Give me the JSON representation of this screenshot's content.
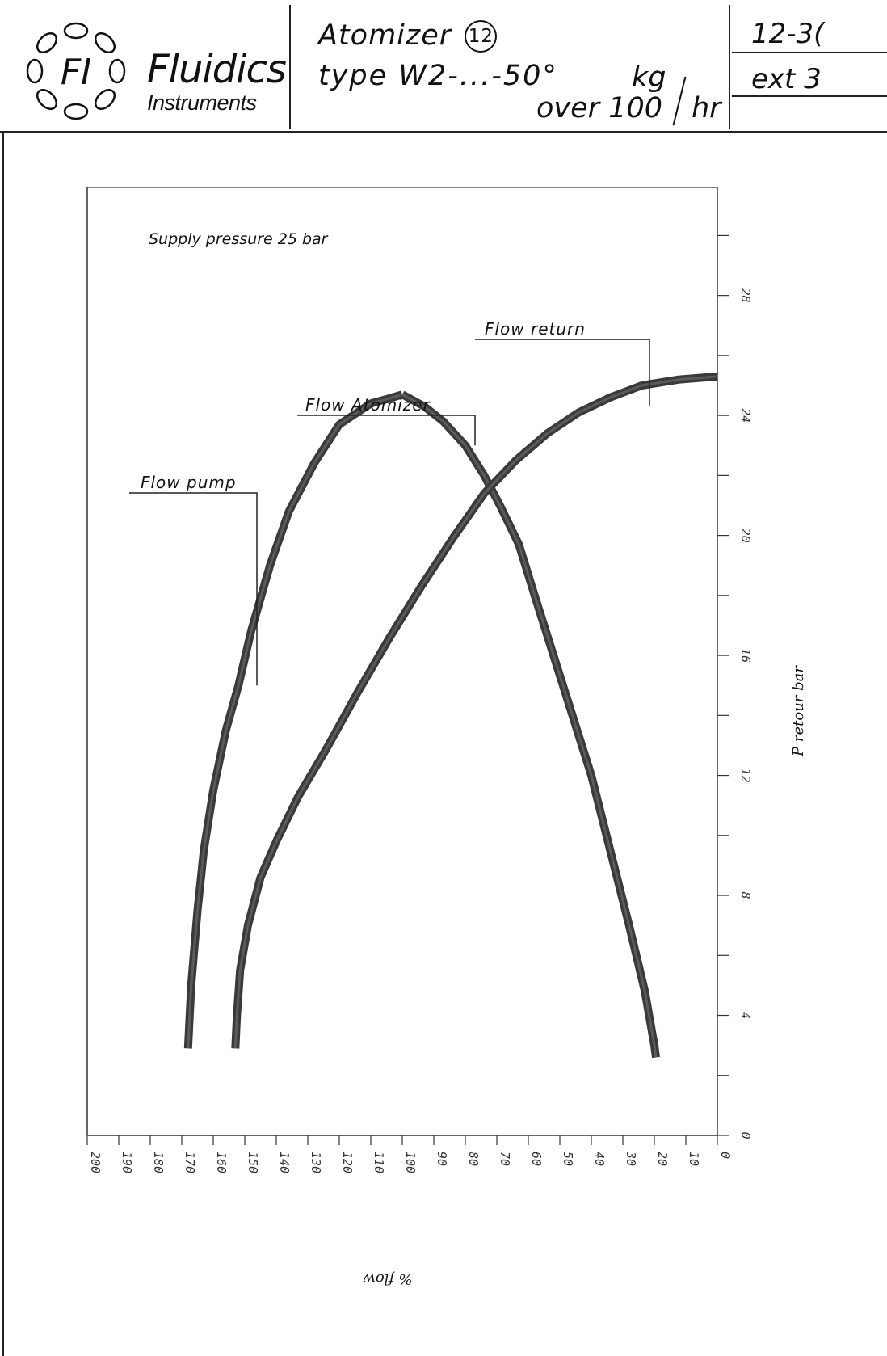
{
  "header": {
    "logo_mark": "FI",
    "company_name": "Fluidics",
    "company_sub": "Instruments",
    "title_line1": "Atomizer",
    "title_number": "12",
    "title_line2": "type W2-...-50°",
    "title_unit_num": "kg",
    "title_unit_den": "hr",
    "title_line3": "over 100",
    "ref1": "12-3(",
    "ref2": "ext 3"
  },
  "chart_data": {
    "type": "line",
    "title": "",
    "annotation": "Supply pressure  25 bar",
    "xlabel": "% flow",
    "ylabel": "P retour bar",
    "xlim": [
      200,
      0
    ],
    "ylim": [
      0,
      30
    ],
    "x_ticks": [
      200,
      190,
      180,
      170,
      160,
      150,
      140,
      130,
      120,
      110,
      100,
      90,
      80,
      70,
      60,
      50,
      40,
      30,
      20,
      10,
      0
    ],
    "y_tick_labels": [
      0,
      4,
      8,
      12,
      16,
      20,
      24,
      28
    ],
    "series": [
      {
        "name": "Flow pump",
        "points": [
          [
            168,
            2.9
          ],
          [
            167,
            5
          ],
          [
            165,
            7.5
          ],
          [
            163,
            9.5
          ],
          [
            160,
            11.5
          ],
          [
            156,
            13.5
          ],
          [
            152,
            15
          ],
          [
            148,
            16.8
          ],
          [
            142,
            19
          ],
          [
            136,
            20.8
          ],
          [
            128,
            22.4
          ],
          [
            120,
            23.7
          ],
          [
            110,
            24.4
          ],
          [
            103,
            24.6
          ],
          [
            100,
            24.7
          ]
        ]
      },
      {
        "name": "Flow Atomizer",
        "points": [
          [
            100,
            24.7
          ],
          [
            93,
            24.3
          ],
          [
            87,
            23.8
          ],
          [
            80,
            23
          ],
          [
            74,
            22
          ],
          [
            69,
            21
          ],
          [
            63,
            19.7
          ],
          [
            58,
            18
          ],
          [
            52,
            16
          ],
          [
            46,
            14
          ],
          [
            40,
            12
          ],
          [
            34,
            9.5
          ],
          [
            28,
            7
          ],
          [
            23,
            4.8
          ],
          [
            20,
            3
          ],
          [
            19.5,
            2.6
          ]
        ]
      },
      {
        "name": "Flow return",
        "points": [
          [
            153,
            2.9
          ],
          [
            152.5,
            4
          ],
          [
            151.5,
            5.5
          ],
          [
            149,
            7
          ],
          [
            145,
            8.6
          ],
          [
            140,
            9.8
          ],
          [
            133,
            11.3
          ],
          [
            124,
            12.9
          ],
          [
            114,
            14.8
          ],
          [
            104,
            16.6
          ],
          [
            94,
            18.3
          ],
          [
            84,
            19.9
          ],
          [
            74,
            21.4
          ],
          [
            64,
            22.5
          ],
          [
            54,
            23.4
          ],
          [
            44,
            24.1
          ],
          [
            34,
            24.6
          ],
          [
            24,
            25
          ],
          [
            12,
            25.2
          ],
          [
            0,
            25.3
          ]
        ]
      }
    ],
    "grid": false,
    "legend": "none"
  }
}
